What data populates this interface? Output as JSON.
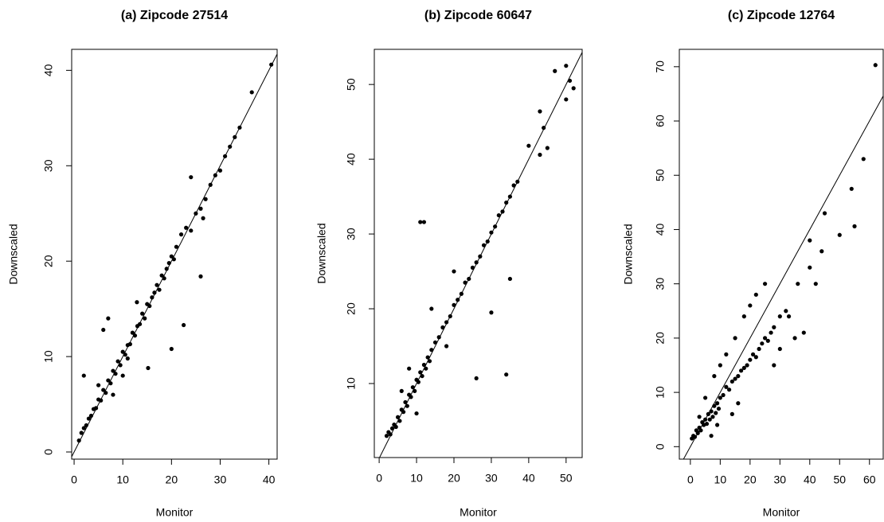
{
  "chart_data": [
    {
      "type": "scatter",
      "title": "(a) Zipcode 27514",
      "xlabel": "Monitor",
      "ylabel": "Downscaled",
      "color": "#000000",
      "abline": {
        "intercept": 0,
        "slope": 1
      },
      "xlim": [
        -0.5,
        41.7
      ],
      "ylim": [
        -0.75,
        42.2
      ],
      "xticks": [
        0,
        10,
        20,
        30,
        40
      ],
      "yticks": [
        0,
        10,
        20,
        30,
        40
      ],
      "x": [
        1,
        1.5,
        2,
        2.5,
        3,
        3.5,
        4,
        4.5,
        5,
        5.5,
        6,
        6.5,
        7,
        7.5,
        8,
        8.5,
        9,
        9.5,
        10,
        10.5,
        11,
        11.5,
        12,
        12.5,
        13,
        13.5,
        14,
        14.5,
        15,
        15.5,
        16,
        16.5,
        17,
        17.5,
        18,
        18.5,
        19,
        19.5,
        20,
        20.5,
        21,
        22,
        23,
        24,
        25,
        26,
        27,
        28,
        29,
        30,
        31,
        32,
        33,
        34,
        36.5,
        40.5,
        2,
        6,
        7,
        10,
        12.9,
        15.2,
        20,
        22.5,
        26,
        24,
        26.5,
        5,
        8,
        11
      ],
      "y": [
        1.2,
        2,
        2.5,
        2.8,
        3.5,
        3.8,
        4.5,
        4.6,
        5.5,
        5.4,
        6.5,
        6.2,
        7.5,
        7.2,
        8.5,
        8.2,
        9.5,
        9.1,
        10.5,
        10.2,
        11.2,
        11.3,
        12.5,
        12.2,
        13.2,
        13.4,
        14.5,
        14,
        15.5,
        15.3,
        16.2,
        16.7,
        17.5,
        17,
        18.5,
        18.2,
        19.2,
        19.8,
        20.5,
        20.2,
        21.5,
        22.8,
        23.5,
        23.2,
        25,
        25.5,
        26.5,
        28,
        29,
        29.5,
        31,
        32,
        33,
        34,
        37.7,
        40.6,
        8,
        12.8,
        14,
        8,
        15.7,
        8.8,
        10.8,
        13.3,
        18.4,
        28.8,
        24.5,
        7,
        6,
        9.8
      ]
    },
    {
      "type": "scatter",
      "title": "(b) Zipcode 60647",
      "xlabel": "Monitor",
      "ylabel": "Downscaled",
      "color": "#000000",
      "abline": {
        "intercept": 0,
        "slope": 1
      },
      "xlim": [
        -1.3,
        54.3
      ],
      "ylim": [
        0.1,
        54.7
      ],
      "xticks": [
        0,
        10,
        20,
        30,
        40,
        50
      ],
      "yticks": [
        10,
        20,
        30,
        40,
        50
      ],
      "x": [
        2,
        2.5,
        3,
        3.5,
        4,
        4.5,
        5,
        5.5,
        6,
        6.5,
        7,
        7.5,
        8,
        8.5,
        9,
        9.5,
        10,
        10.5,
        11,
        11.5,
        12,
        12.5,
        13,
        13.5,
        14,
        15,
        16,
        17,
        18,
        19,
        20,
        21,
        22,
        23,
        24,
        25,
        26,
        27,
        28,
        29,
        30,
        31,
        32,
        33,
        34,
        35,
        36,
        37,
        11,
        12,
        34,
        26,
        30,
        35,
        47,
        50,
        51,
        50,
        52,
        43,
        44,
        43,
        45,
        40,
        6,
        8,
        14,
        18,
        20,
        10
      ],
      "y": [
        3,
        3.5,
        3.2,
        4,
        4.5,
        4.2,
        5.5,
        5,
        6.5,
        6.2,
        7.5,
        7,
        8.5,
        8.2,
        9.5,
        9,
        10.5,
        10.2,
        11.5,
        11,
        12.5,
        12,
        13.5,
        13,
        14.5,
        15.5,
        16.2,
        17.5,
        18.2,
        19,
        20.5,
        21.2,
        22,
        23.5,
        24,
        25.5,
        26.2,
        27,
        28.5,
        29,
        30.2,
        31,
        32.5,
        33,
        34.2,
        35,
        36.5,
        37,
        31.6,
        31.6,
        11.2,
        10.7,
        19.5,
        24,
        51.8,
        52.5,
        50.5,
        48,
        49.5,
        46.4,
        44.2,
        40.6,
        41.5,
        41.8,
        9,
        12,
        20,
        15,
        25,
        6
      ]
    },
    {
      "type": "scatter",
      "title": "(c) Zipcode 12764",
      "xlabel": "Monitor",
      "ylabel": "Downscaled",
      "color": "#000000",
      "abline": {
        "intercept": 0,
        "slope": 1
      },
      "xlim": [
        -3.7,
        64.6
      ],
      "ylim": [
        -2.3,
        73.2
      ],
      "xticks": [
        0,
        10,
        20,
        30,
        40,
        50,
        60
      ],
      "yticks": [
        0,
        10,
        20,
        30,
        40,
        50,
        60,
        70
      ],
      "x": [
        0.5,
        1,
        1.5,
        2,
        2.5,
        3,
        3.5,
        4,
        4.5,
        5,
        5.5,
        6,
        6.5,
        7,
        7.5,
        8,
        8.5,
        9,
        9.5,
        10,
        11,
        12,
        13,
        14,
        15,
        16,
        17,
        18,
        19,
        20,
        21,
        22,
        23,
        24,
        25,
        26,
        27,
        28,
        30,
        32,
        35,
        38,
        40,
        42,
        45,
        50,
        54,
        55,
        58,
        62,
        3,
        5,
        8,
        10,
        12,
        15,
        18,
        20,
        22,
        25,
        28,
        30,
        33,
        36,
        40,
        44,
        7,
        9,
        14,
        16
      ],
      "y": [
        1.5,
        2,
        1.8,
        3,
        2.5,
        3.5,
        3,
        4.5,
        4,
        5,
        4.2,
        6,
        5,
        6.5,
        5.5,
        7.5,
        6.2,
        8,
        7,
        9,
        9.5,
        11,
        10.5,
        12,
        12.5,
        13,
        14,
        14.5,
        15,
        16,
        17,
        16.5,
        18,
        19,
        20,
        19.5,
        21,
        22,
        24,
        25,
        20,
        21,
        38,
        30,
        43,
        39,
        47.5,
        40.6,
        53,
        70.3,
        5.5,
        9,
        13,
        15,
        17,
        20,
        24,
        26,
        28,
        30,
        15,
        18,
        24,
        30,
        33,
        36,
        2,
        4,
        6,
        8
      ]
    }
  ]
}
